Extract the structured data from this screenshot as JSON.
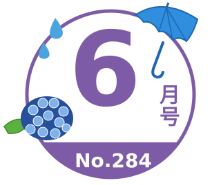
{
  "badge": {
    "month": "6",
    "suffix_top": "月",
    "suffix_bottom": "号",
    "issue": "No.284"
  }
}
